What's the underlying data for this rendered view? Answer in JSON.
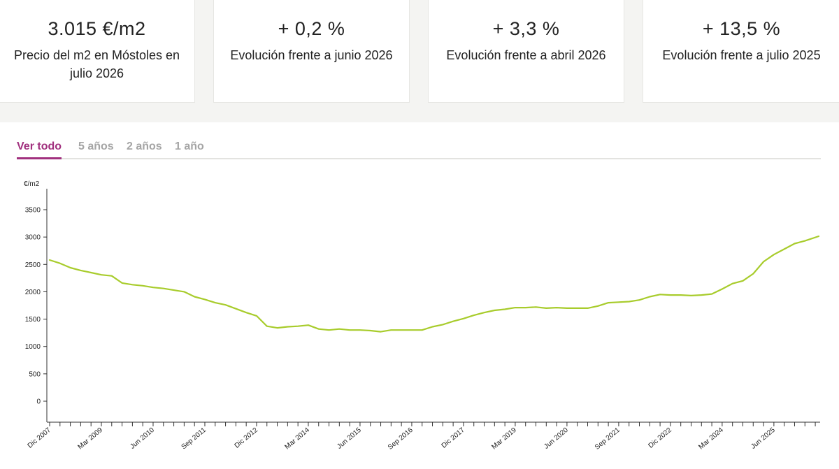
{
  "stats": [
    {
      "value": "3.015 €/m2",
      "label": "Precio del m2 en Móstoles en julio 2026"
    },
    {
      "value": "+ 0,2 %",
      "label": "Evolución frente a junio 2026"
    },
    {
      "value": "+ 3,3 %",
      "label": "Evolución frente a abril 2026"
    },
    {
      "value": "+ 13,5 %",
      "label": "Evolución frente a julio 2025"
    }
  ],
  "tabs": [
    {
      "label": "Ver todo",
      "active": true
    },
    {
      "label": "5 años",
      "active": false
    },
    {
      "label": "2 años",
      "active": false
    },
    {
      "label": "1 año",
      "active": false
    }
  ],
  "chart_data": {
    "type": "line",
    "ylabel": "€/m2",
    "ylim": [
      0,
      3500
    ],
    "yticks": [
      0,
      500,
      1000,
      1500,
      2000,
      2500,
      3000,
      3500
    ],
    "xticks": [
      "Dic 2007",
      "Mar 2009",
      "Jun 2010",
      "Sep 2011",
      "Dic 2012",
      "Mar 2014",
      "Jun 2015",
      "Sep 2016",
      "Dic 2017",
      "Mar 2019",
      "Jun 2020",
      "Sep 2021",
      "Dic 2022",
      "Mar 2024",
      "Jun 2025"
    ],
    "line_color": "#a8cc2c",
    "x": [
      "2007-12",
      "2008-03",
      "2008-06",
      "2008-09",
      "2008-12",
      "2009-03",
      "2009-06",
      "2009-09",
      "2009-12",
      "2010-03",
      "2010-06",
      "2010-09",
      "2010-12",
      "2011-03",
      "2011-06",
      "2011-09",
      "2011-12",
      "2012-03",
      "2012-06",
      "2012-09",
      "2012-12",
      "2013-03",
      "2013-06",
      "2013-09",
      "2013-12",
      "2014-03",
      "2014-06",
      "2014-09",
      "2014-12",
      "2015-03",
      "2015-06",
      "2015-09",
      "2015-12",
      "2016-03",
      "2016-06",
      "2016-09",
      "2016-12",
      "2017-03",
      "2017-06",
      "2017-09",
      "2017-12",
      "2018-03",
      "2018-06",
      "2018-09",
      "2018-12",
      "2019-03",
      "2019-06",
      "2019-09",
      "2019-12",
      "2020-03",
      "2020-06",
      "2020-09",
      "2020-12",
      "2021-03",
      "2021-06",
      "2021-09",
      "2021-12",
      "2022-03",
      "2022-06",
      "2022-09",
      "2022-12",
      "2023-03",
      "2023-06",
      "2023-09",
      "2023-12",
      "2024-03",
      "2024-06",
      "2024-09",
      "2024-12",
      "2025-03",
      "2025-06",
      "2025-09",
      "2025-12",
      "2026-03",
      "2026-07"
    ],
    "values": [
      2580,
      2520,
      2440,
      2390,
      2350,
      2310,
      2290,
      2160,
      2130,
      2110,
      2080,
      2060,
      2030,
      2000,
      1910,
      1860,
      1800,
      1760,
      1690,
      1620,
      1560,
      1370,
      1340,
      1360,
      1370,
      1390,
      1320,
      1300,
      1320,
      1300,
      1300,
      1290,
      1270,
      1300,
      1300,
      1300,
      1300,
      1360,
      1400,
      1460,
      1510,
      1570,
      1620,
      1660,
      1680,
      1710,
      1710,
      1720,
      1700,
      1710,
      1700,
      1700,
      1700,
      1740,
      1800,
      1810,
      1820,
      1850,
      1910,
      1950,
      1940,
      1940,
      1930,
      1940,
      1960,
      2050,
      2150,
      2200,
      2330,
      2550,
      2680,
      2780,
      2880,
      2930,
      3015
    ]
  }
}
